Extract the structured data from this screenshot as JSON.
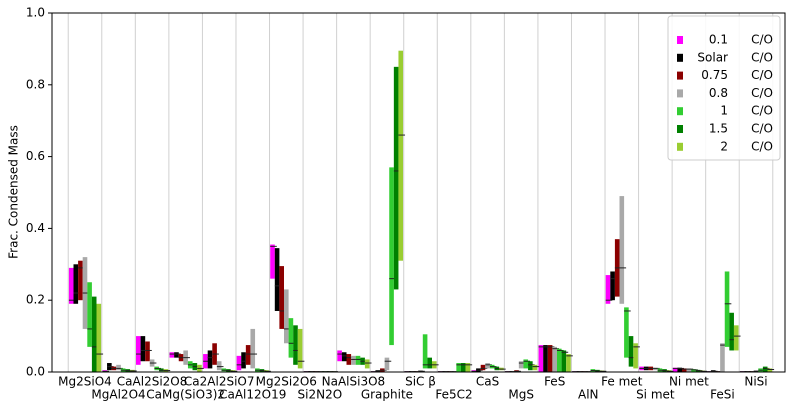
{
  "chart_data": {
    "type": "range-bar",
    "ylabel": "Frac. Condensed Mass",
    "ylim": [
      0,
      1
    ],
    "yticks": [
      {
        "value": 0,
        "label": "0.0"
      },
      0.2,
      0.4,
      0.6,
      0.8,
      {
        "value": 1,
        "label": "1.0"
      }
    ],
    "grid": true,
    "legend": "upper right",
    "categories": [
      "Mg2SiO4",
      "MgAl2O4",
      "CaAl2Si2O8",
      "CaMg(SiO3)2",
      "Ca2Al2SiO7",
      "CaAl12O19",
      "Mg2Si2O6",
      "Si2N2O",
      "NaAlSi3O8",
      "Graphite",
      "SiC β",
      "Fe5C2",
      "CaS",
      "MgS",
      "FeS",
      "AlN",
      "Fe met",
      "Si met",
      "Ni met",
      "FeSi",
      "NiSi"
    ],
    "series": [
      {
        "name": "0.1",
        "unit": "C/O",
        "color": "#ff00ff",
        "low": [
          0.19,
          0,
          0.02,
          0.04,
          0.01,
          0.005,
          0.26,
          0,
          0.03,
          0,
          0,
          0,
          0,
          0,
          0,
          0,
          0.19,
          0.005,
          0,
          0,
          0
        ],
        "high": [
          0.29,
          0.005,
          0.1,
          0.055,
          0.05,
          0.045,
          0.355,
          0.002,
          0.06,
          0.002,
          0.002,
          0.002,
          0.005,
          0.002,
          0.075,
          0.002,
          0.27,
          0.015,
          0.012,
          0.002,
          0.002
        ],
        "mid": [
          0.2,
          0.002,
          0.05,
          0.05,
          0.03,
          0.02,
          0.35,
          0.001,
          0.05,
          0.001,
          0.001,
          0.001,
          0.002,
          0.001,
          0.07,
          0.001,
          0.2,
          0.01,
          0.01,
          0.001,
          0.001
        ]
      },
      {
        "name": "Solar",
        "unit": "C/O",
        "color": "#000000",
        "low": [
          0.19,
          0.005,
          0.03,
          0.04,
          0.01,
          0.01,
          0.17,
          0,
          0.03,
          0,
          0,
          0,
          0,
          0,
          0,
          0,
          0.2,
          0.005,
          0,
          0,
          0
        ],
        "high": [
          0.3,
          0.025,
          0.1,
          0.055,
          0.06,
          0.055,
          0.345,
          0.002,
          0.055,
          0.005,
          0.002,
          0.002,
          0.01,
          0.002,
          0.075,
          0.002,
          0.28,
          0.015,
          0.012,
          0.005,
          0.002
        ],
        "mid": [
          0.22,
          0.015,
          0.06,
          0.05,
          0.04,
          0.03,
          0.24,
          0.001,
          0.045,
          0.002,
          0.001,
          0.001,
          0.005,
          0.001,
          0.07,
          0.001,
          0.26,
          0.01,
          0.01,
          0.002,
          0.001
        ]
      },
      {
        "name": "0.75",
        "unit": "C/O",
        "color": "#8b0000",
        "low": [
          0.2,
          0.005,
          0.03,
          0.03,
          0.02,
          0.02,
          0.12,
          0,
          0.02,
          0,
          0,
          0,
          0.005,
          0,
          0,
          0,
          0.21,
          0.005,
          0,
          0,
          0
        ],
        "high": [
          0.31,
          0.015,
          0.085,
          0.05,
          0.08,
          0.075,
          0.295,
          0.002,
          0.05,
          0.01,
          0.002,
          0.002,
          0.02,
          0.005,
          0.075,
          0.002,
          0.37,
          0.015,
          0.01,
          0.002,
          0.002
        ],
        "mid": [
          0.29,
          0.01,
          0.06,
          0.04,
          0.05,
          0.05,
          0.17,
          0.001,
          0.04,
          0.005,
          0.001,
          0.001,
          0.01,
          0.002,
          0.07,
          0.001,
          0.29,
          0.01,
          0.008,
          0.001,
          0.001
        ]
      },
      {
        "name": "0.8",
        "unit": "C/O",
        "color": "#a9a9a9",
        "low": [
          0.12,
          0.005,
          0.015,
          0.02,
          0.005,
          0.01,
          0.08,
          0,
          0.02,
          0.005,
          0,
          0,
          0.01,
          0.01,
          0,
          0,
          0.19,
          0.005,
          0,
          0,
          0
        ],
        "high": [
          0.32,
          0.02,
          0.035,
          0.06,
          0.03,
          0.12,
          0.23,
          0.002,
          0.045,
          0.04,
          0.005,
          0.002,
          0.025,
          0.03,
          0.07,
          0.002,
          0.49,
          0.012,
          0.01,
          0.08,
          0.005
        ],
        "mid": [
          0.22,
          0.01,
          0.025,
          0.04,
          0.015,
          0.05,
          0.12,
          0.001,
          0.035,
          0.03,
          0.002,
          0.001,
          0.02,
          0.025,
          0.065,
          0.001,
          0.29,
          0.01,
          0.008,
          0.075,
          0.002
        ]
      },
      {
        "name": "1",
        "unit": "C/O",
        "color": "#32cd32",
        "low": [
          0.07,
          0,
          0.005,
          0.01,
          0.002,
          0,
          0.04,
          0,
          0.02,
          0.075,
          0.01,
          0,
          0.01,
          0.01,
          0,
          0,
          0.04,
          0,
          0,
          0.07,
          0
        ],
        "high": [
          0.25,
          0.01,
          0.015,
          0.03,
          0.01,
          0.01,
          0.15,
          0.002,
          0.045,
          0.57,
          0.105,
          0.025,
          0.02,
          0.035,
          0.065,
          0.008,
          0.18,
          0.01,
          0.008,
          0.28,
          0.01
        ],
        "mid": [
          0.12,
          0.005,
          0.01,
          0.02,
          0.005,
          0.005,
          0.08,
          0.001,
          0.035,
          0.26,
          0.02,
          0.02,
          0.015,
          0.03,
          0.06,
          0.004,
          0.17,
          0.005,
          0.006,
          0.19,
          0.005
        ]
      },
      {
        "name": "1.5",
        "unit": "C/O",
        "color": "#008000",
        "low": [
          0,
          0,
          0.002,
          0.005,
          0,
          0,
          0.02,
          0,
          0.02,
          0.23,
          0.01,
          0,
          0.005,
          0.005,
          0,
          0,
          0.015,
          0,
          0,
          0.06,
          0
        ],
        "high": [
          0.21,
          0.008,
          0.01,
          0.025,
          0.008,
          0.008,
          0.13,
          0.002,
          0.04,
          0.85,
          0.04,
          0.025,
          0.015,
          0.03,
          0.06,
          0.006,
          0.1,
          0.008,
          0.006,
          0.165,
          0.015
        ],
        "mid": [
          0.07,
          0.004,
          0.005,
          0.015,
          0.004,
          0.004,
          0.06,
          0.001,
          0.03,
          0.56,
          0.02,
          0.02,
          0.01,
          0.02,
          0.055,
          0.003,
          0.04,
          0.004,
          0.004,
          0.09,
          0.01
        ]
      },
      {
        "name": "2",
        "unit": "C/O",
        "color": "#9acd32",
        "low": [
          0,
          0,
          0,
          0,
          0,
          0,
          0.01,
          0,
          0.01,
          0.31,
          0.01,
          0,
          0.005,
          0.005,
          0,
          0,
          0.01,
          0,
          0,
          0.06,
          0
        ],
        "high": [
          0.19,
          0.006,
          0.008,
          0.02,
          0.005,
          0.005,
          0.12,
          0.002,
          0.035,
          0.895,
          0.03,
          0.025,
          0.012,
          0.02,
          0.05,
          0.004,
          0.08,
          0.005,
          0.004,
          0.13,
          0.01
        ],
        "mid": [
          0.05,
          0.003,
          0.004,
          0.01,
          0.002,
          0.002,
          0.03,
          0.001,
          0.025,
          0.66,
          0.02,
          0.02,
          0.008,
          0.015,
          0.045,
          0.002,
          0.07,
          0.002,
          0.002,
          0.1,
          0.007
        ]
      }
    ]
  }
}
